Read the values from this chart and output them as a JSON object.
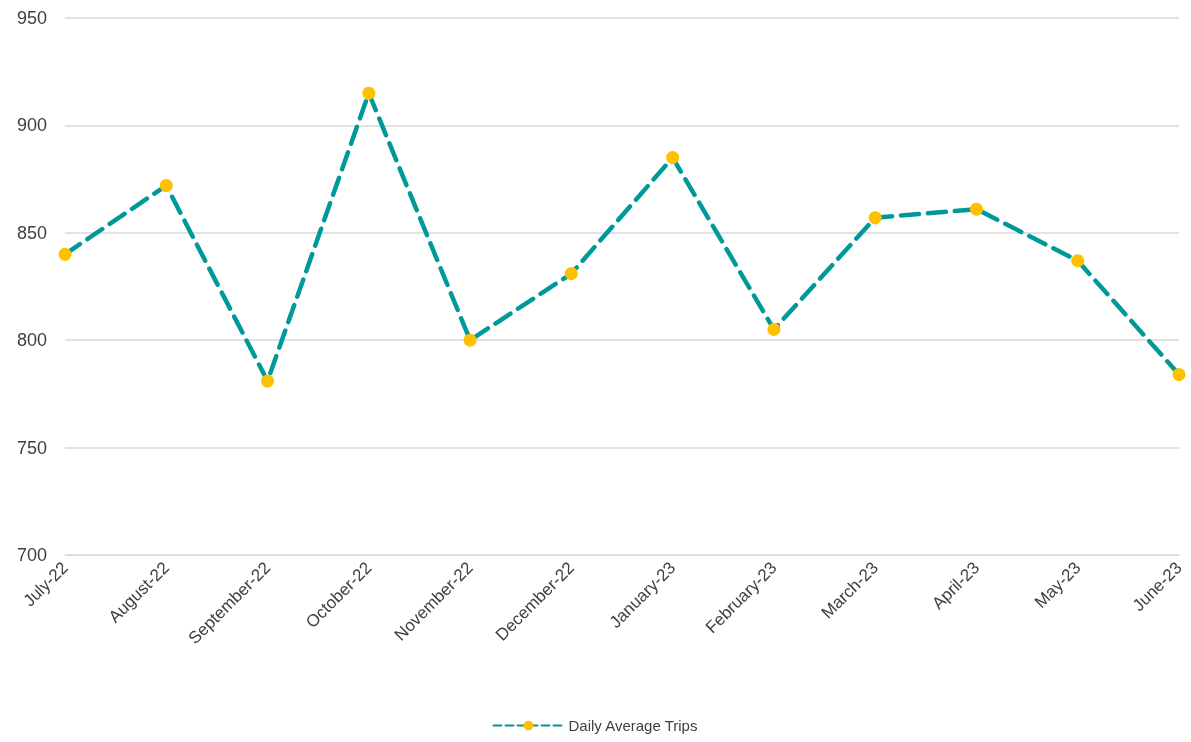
{
  "chart_data": {
    "type": "line",
    "categories": [
      "July-22",
      "August-22",
      "September-22",
      "October-22",
      "November-22",
      "December-22",
      "January-23",
      "February-23",
      "March-23",
      "April-23",
      "May-23",
      "June-23"
    ],
    "series": [
      {
        "name": "Daily Average Trips",
        "color": "#009999",
        "colors": [
          "#ffc000",
          "#ffc000",
          "#ffc000",
          "#ffc000",
          "#ffc000",
          "#ffc000",
          "#ffc000",
          "#ffc000",
          "#ffc000",
          "#ffc000",
          "#ffc000",
          "#ffc000"
        ],
        "values": [
          840,
          872,
          781,
          915,
          800,
          831,
          885,
          805,
          857,
          861,
          837,
          784
        ]
      }
    ],
    "ylim": [
      700,
      950
    ],
    "yticks": [
      700,
      750,
      800,
      850,
      900,
      950
    ],
    "grid": "y",
    "legend": "bottom",
    "marker": "circle",
    "line_style": "dashed"
  }
}
